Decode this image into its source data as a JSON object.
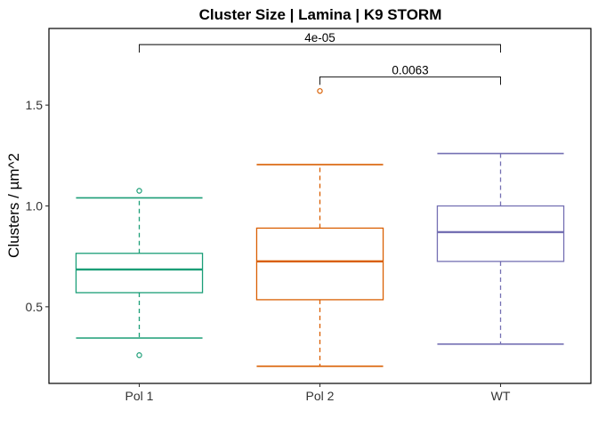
{
  "chart_data": {
    "type": "box",
    "title": "Cluster Size | Lamina | K9 STORM",
    "xlabel": "",
    "ylabel": "Clusters / µm^2",
    "ylim": [
      0.12,
      1.88
    ],
    "yticks": [
      0.5,
      1.0,
      1.5
    ],
    "ytick_labels": [
      "0.5",
      "1.0",
      "1.5"
    ],
    "grid": false,
    "categories": [
      "Pol 1",
      "Pol 2",
      "WT"
    ],
    "colors": [
      "#1b9e77",
      "#d95f02",
      "#7570b3"
    ],
    "boxes": [
      {
        "category": "Pol 1",
        "min": 0.345,
        "q1": 0.57,
        "median": 0.685,
        "q3": 0.765,
        "max": 1.04,
        "outliers": [
          1.075,
          0.26
        ]
      },
      {
        "category": "Pol 2",
        "min": 0.205,
        "q1": 0.535,
        "median": 0.725,
        "q3": 0.89,
        "max": 1.205,
        "outliers": [
          1.57
        ]
      },
      {
        "category": "WT",
        "min": 0.315,
        "q1": 0.725,
        "median": 0.87,
        "q3": 1.0,
        "max": 1.26,
        "outliers": []
      }
    ],
    "comparisons": [
      {
        "from": "Pol 1",
        "to": "WT",
        "label": "4e-05",
        "y": 1.8
      },
      {
        "from": "Pol 2",
        "to": "WT",
        "label": "0.0063",
        "y": 1.64
      }
    ]
  }
}
